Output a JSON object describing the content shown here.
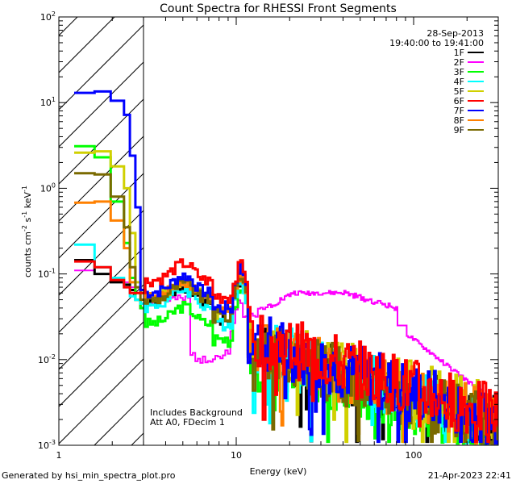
{
  "chart_data": {
    "type": "line",
    "title": "Count Spectra for RHESSI Front Segments",
    "xlabel": "Energy (keV)",
    "ylabel": "counts cm",
    "ylabel_sup1": "-2",
    "ylabel_mid": " s",
    "ylabel_sup2": "-1",
    "ylabel_mid2": " keV",
    "ylabel_sup3": "-1",
    "x_scale": "log",
    "y_scale": "log",
    "xlim": [
      1,
      300
    ],
    "ylim": [
      0.001,
      100
    ],
    "x_ticks": [
      {
        "v": 1,
        "label": "1"
      },
      {
        "v": 10,
        "label": "10"
      },
      {
        "v": 100,
        "label": "100"
      }
    ],
    "y_ticks": [
      {
        "v": 0.001,
        "base": "10",
        "exp": "-3"
      },
      {
        "v": 0.01,
        "base": "10",
        "exp": "-2"
      },
      {
        "v": 0.1,
        "base": "10",
        "exp": "-1"
      },
      {
        "v": 1,
        "base": "10",
        "exp": "0"
      },
      {
        "v": 10,
        "base": "10",
        "exp": "1"
      },
      {
        "v": 100,
        "base": "10",
        "exp": "2"
      }
    ],
    "hatched_below_kev": 3,
    "date": "28-Sep-2013",
    "time_range": "19:40:00 to 19:41:00",
    "annotation1": "Includes Background",
    "annotation2": "Att A0, FDecim 1",
    "series": [
      {
        "name": "1F",
        "color": "#000000",
        "low": [
          0.145,
          0.145,
          0.1,
          0.1,
          0.08,
          0.08,
          0.075,
          0.065,
          0.05,
          0.04
        ],
        "hump": 0.06,
        "hump2": 0.065,
        "tail_start": 0.015,
        "tail_end": 0.0018,
        "seed": 1
      },
      {
        "name": "2F",
        "color": "#ff00ff",
        "special": true,
        "low": [
          0.11,
          0.11,
          0.1,
          0.1,
          0.09,
          0.09,
          0.08,
          0.07,
          0.06,
          0.05
        ],
        "seed": 2
      },
      {
        "name": "3F",
        "color": "#00ff00",
        "low": [
          3.1,
          3.1,
          2.3,
          2.3,
          0.7,
          0.7,
          0.23,
          0.09,
          0.05,
          0.04
        ],
        "hump": 0.035,
        "hump2": 0.05,
        "tail_start": 0.012,
        "tail_end": 0.0014,
        "seed": 3
      },
      {
        "name": "4F",
        "color": "#00ffff",
        "low": [
          0.22,
          0.22,
          0.12,
          0.12,
          0.09,
          0.09,
          0.07,
          0.055,
          0.05,
          0.045
        ],
        "hump": 0.055,
        "hump2": 0.06,
        "tail_start": 0.015,
        "tail_end": 0.0018,
        "seed": 4
      },
      {
        "name": "5F",
        "color": "#d0d000",
        "low": [
          2.6,
          2.6,
          2.7,
          2.7,
          1.8,
          1.8,
          1.0,
          0.3,
          0.08,
          0.06
        ],
        "hump": 0.07,
        "hump2": 0.08,
        "tail_start": 0.016,
        "tail_end": 0.0022,
        "seed": 5
      },
      {
        "name": "6F",
        "color": "#ff0000",
        "low": [
          0.14,
          0.14,
          0.12,
          0.12,
          0.085,
          0.085,
          0.07,
          0.06,
          0.06,
          0.06
        ],
        "hump": 0.11,
        "hump2": 0.1,
        "tail_start": 0.02,
        "tail_end": 0.0022,
        "seed": 6
      },
      {
        "name": "7F",
        "color": "#0000ff",
        "low": [
          13,
          13,
          13.5,
          13.5,
          10.5,
          10.5,
          7.2,
          2.4,
          0.6,
          0.065
        ],
        "hump": 0.08,
        "hump2": 0.09,
        "tail_start": 0.018,
        "tail_end": 0.002,
        "seed": 7
      },
      {
        "name": "8F",
        "color": "#ff8000",
        "low": [
          0.68,
          0.68,
          0.7,
          0.7,
          0.42,
          0.42,
          0.2,
          0.08,
          0.07,
          0.06
        ],
        "hump": 0.07,
        "hump2": 0.07,
        "tail_start": 0.015,
        "tail_end": 0.0018,
        "seed": 8
      },
      {
        "name": "9F",
        "color": "#7a6a00",
        "low": [
          1.5,
          1.5,
          1.45,
          1.45,
          0.8,
          0.8,
          0.35,
          0.12,
          0.07,
          0.05
        ],
        "hump": 0.065,
        "hump2": 0.07,
        "tail_start": 0.015,
        "tail_end": 0.0016,
        "seed": 9
      }
    ]
  },
  "footer": {
    "left": "Generated by hsi_min_spectra_plot.pro",
    "right": "21-Apr-2023 22:41"
  }
}
